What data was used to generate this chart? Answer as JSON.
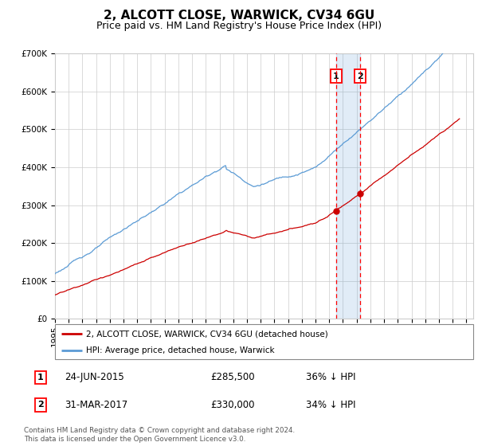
{
  "title": "2, ALCOTT CLOSE, WARWICK, CV34 6GU",
  "subtitle": "Price paid vs. HM Land Registry's House Price Index (HPI)",
  "ylim": [
    0,
    700000
  ],
  "yticks": [
    0,
    100000,
    200000,
    300000,
    400000,
    500000,
    600000,
    700000
  ],
  "ytick_labels": [
    "£0",
    "£100K",
    "£200K",
    "£300K",
    "£400K",
    "£500K",
    "£600K",
    "£700K"
  ],
  "xlim_start": 1995.0,
  "xlim_end": 2025.5,
  "hpi_color": "#5b9bd5",
  "property_color": "#cc0000",
  "transaction1_date": 2015.48,
  "transaction1_price": 285500,
  "transaction1_label": "1",
  "transaction2_date": 2017.25,
  "transaction2_price": 330000,
  "transaction2_label": "2",
  "shaded_region_alpha": 0.18,
  "shaded_region_color": "#5b9bd5",
  "legend_property": "2, ALCOTT CLOSE, WARWICK, CV34 6GU (detached house)",
  "legend_hpi": "HPI: Average price, detached house, Warwick",
  "table_row1": [
    "1",
    "24-JUN-2015",
    "£285,500",
    "36% ↓ HPI"
  ],
  "table_row2": [
    "2",
    "31-MAR-2017",
    "£330,000",
    "34% ↓ HPI"
  ],
  "footer": "Contains HM Land Registry data © Crown copyright and database right 2024.\nThis data is licensed under the Open Government Licence v3.0.",
  "background_color": "#ffffff",
  "grid_color": "#cccccc",
  "title_fontsize": 11,
  "subtitle_fontsize": 9,
  "tick_fontsize": 7.5,
  "figsize": [
    6.0,
    5.6
  ],
  "dpi": 100
}
